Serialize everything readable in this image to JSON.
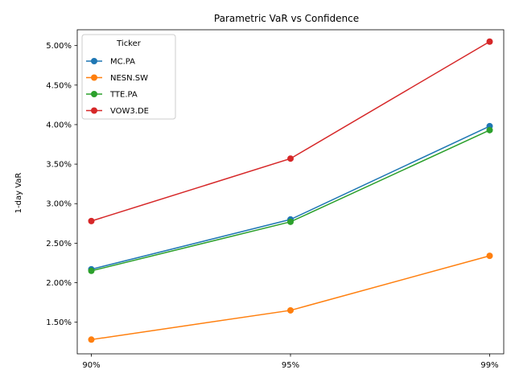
{
  "chart_data": {
    "type": "line",
    "title": "Parametric VaR vs Confidence",
    "xlabel": "",
    "ylabel": "1-day VaR",
    "categories": [
      "90%",
      "95%",
      "99%"
    ],
    "ylim": [
      0.011,
      0.052
    ],
    "yticks": [
      "1.50%",
      "2.00%",
      "2.50%",
      "3.00%",
      "3.50%",
      "4.00%",
      "4.50%",
      "5.00%"
    ],
    "ytick_values": [
      0.015,
      0.02,
      0.025,
      0.03,
      0.035,
      0.04,
      0.045,
      0.05
    ],
    "grid": false,
    "legend": {
      "title": "Ticker",
      "placement": "top-left"
    },
    "series": [
      {
        "name": "MC.PA",
        "color": "#1f77b4",
        "values": [
          0.0217,
          0.028,
          0.0398
        ]
      },
      {
        "name": "NESN.SW",
        "color": "#ff7f0e",
        "values": [
          0.0128,
          0.0165,
          0.0234
        ]
      },
      {
        "name": "TTE.PA",
        "color": "#2ca02c",
        "values": [
          0.0215,
          0.0277,
          0.0393
        ]
      },
      {
        "name": "VOW3.DE",
        "color": "#d62728",
        "values": [
          0.0278,
          0.0357,
          0.0505
        ]
      }
    ]
  }
}
